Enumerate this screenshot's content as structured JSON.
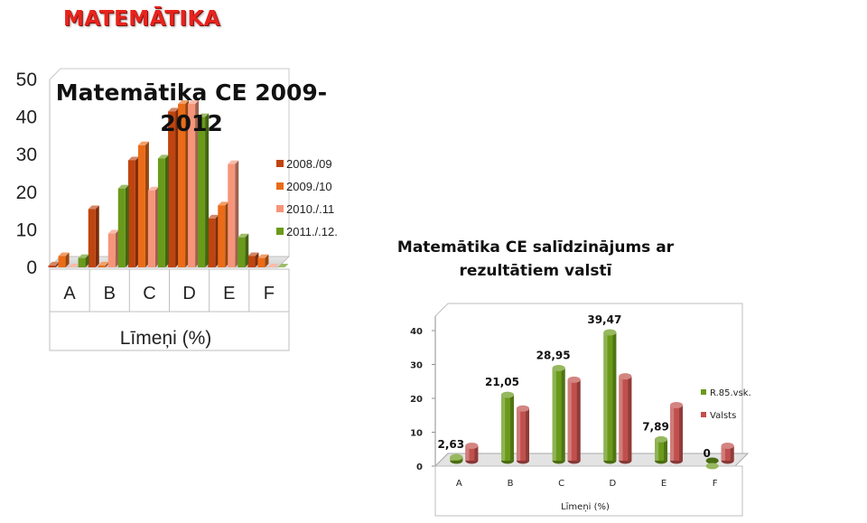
{
  "page": {
    "title": "MATEMĀTIKA"
  },
  "chart_data": [
    {
      "type": "bar",
      "title": "Matemātika CE 2009-2012",
      "title_lines": [
        "Matemātika CE 2009-",
        "2012"
      ],
      "xlabel": "Līmeņi (%)",
      "ylabel": "",
      "ylim": [
        0,
        50
      ],
      "yticks": [
        0,
        10,
        20,
        30,
        40,
        50
      ],
      "grid": false,
      "legend_position": "right",
      "categories": [
        "A",
        "B",
        "C",
        "D",
        "E",
        "F"
      ],
      "series": [
        {
          "name": "2008./09",
          "color": "#c0440f",
          "values": [
            0.5,
            15.5,
            28.5,
            41.5,
            13,
            3
          ]
        },
        {
          "name": "2009./10",
          "color": "#ea6b18",
          "values": [
            3,
            0.5,
            32.5,
            43.5,
            16.5,
            2.5
          ]
        },
        {
          "name": "2010./.11",
          "color": "#f6957a",
          "values": [
            0,
            9,
            20.5,
            43.5,
            27.5,
            0
          ]
        },
        {
          "name": "2011./.12.",
          "color": "#6a9a1a",
          "values": [
            2.5,
            21,
            29,
            40,
            8,
            0
          ]
        }
      ]
    },
    {
      "type": "bar",
      "title": "Matemātika CE salīdzinājums ar rezultātiem valstī",
      "title_lines": [
        "Matemātika CE salīdzinājums ar",
        "rezultātiem valstī"
      ],
      "xlabel": "Līmeņi (%)",
      "ylabel": "",
      "ylim": [
        0,
        40
      ],
      "yticks": [
        0,
        10,
        20,
        30,
        40
      ],
      "grid": false,
      "legend_position": "right",
      "categories": [
        "A",
        "B",
        "C",
        "D",
        "E",
        "F"
      ],
      "series": [
        {
          "name": "R.85.vsk.",
          "color": "#6a9a1a",
          "values": [
            2.63,
            21.05,
            28.95,
            39.47,
            7.89,
            0
          ],
          "data_labels": [
            "2,63",
            "21,05",
            "28,95",
            "39,47",
            "7,89",
            "0"
          ]
        },
        {
          "name": "Valsts",
          "color": "#c0504d",
          "values": [
            6,
            17,
            25.5,
            26.5,
            18,
            6
          ]
        }
      ]
    }
  ]
}
